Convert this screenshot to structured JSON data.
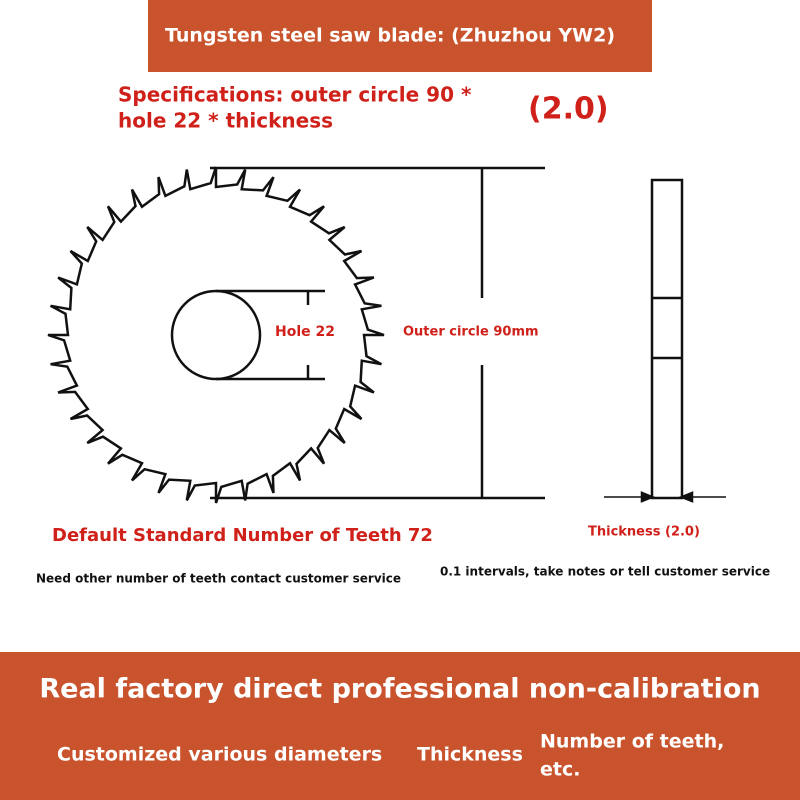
{
  "header": {
    "title": "Tungsten steel saw blade: (Zhuzhou YW2)"
  },
  "specs": {
    "line1": "Specifications: outer circle 90 *",
    "line2": "hole 22 * thickness",
    "thickness_value": "(2.0)"
  },
  "diagram": {
    "hole_label": "Hole 22",
    "outer_label": "Outer circle 90mm",
    "thickness_label": "Thickness (2.0)"
  },
  "notes": {
    "teeth_default": "Default Standard Number of Teeth 72",
    "teeth_contact": "Need other number of teeth contact customer service",
    "thickness_intervals": "0.1 intervals, take notes or tell customer service"
  },
  "footer": {
    "headline": "Real factory direct professional non-calibration",
    "item1": "Customized various diameters",
    "item2": "Thickness",
    "item3_line1": "Number of teeth,",
    "item3_line2": "etc."
  }
}
